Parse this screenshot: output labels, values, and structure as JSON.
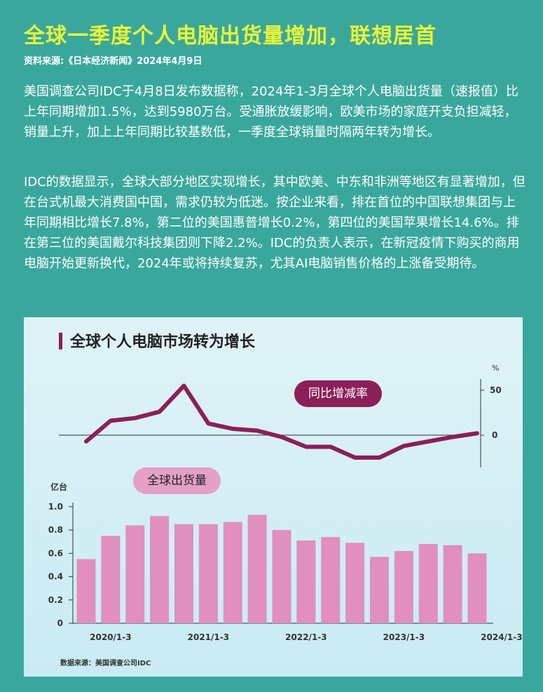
{
  "headline": "全球一季度个人电脑出货量增加，联想居首",
  "source": "资料来源:《日本经济新闻》2024年4月9日",
  "paragraphs": [
    "美国调查公司IDC于4月8日发布数据称，2024年1-3月全球个人电脑出货量（速报值）比上年同期增加1.5%，达到5980万台。受通胀放缓影响，欧美市场的家庭开支负担减轻，销量上升，加上上年同期比较基数低，一季度全球销量时隔两年转为增长。",
    "IDC的数据显示，全球大部分地区实现增长，其中欧美、中东和非洲等地区有显著增加，但在台式机最大消费国中国，需求仍较为低迷。按企业来看，排在首位的中国联想集团与上年同期相比增长7.8%，第二位的美国惠普增长0.2%，第四位的美国苹果增长14.6%。排在第三位的美国戴尔科技集团则下降2.2%。IDC的负责人表示，在新冠疫情下购买的商用电脑开始更新换代，2024年或将持续复苏，尤其AI电脑销售价格的上涨备受期待。"
  ],
  "chart_title": "全球个人电脑市场转为增长",
  "chart_credit": "数据来源：美国调查公司IDC",
  "colors": {
    "growth": "#8b1f57",
    "bars": "#e08fbe",
    "accent": "#e8f53a"
  },
  "chart_data": [
    {
      "type": "line",
      "series_label": "同比增减率",
      "unit": "%",
      "yticks": [
        "50",
        "0"
      ],
      "ylim": [
        -35,
        55
      ],
      "values": [
        -7,
        16,
        19,
        26,
        55,
        13,
        7,
        5,
        -2,
        -13,
        -13,
        -25,
        -25,
        -12,
        -7,
        -2,
        2
      ]
    },
    {
      "type": "bar",
      "series_label": "全球出货量",
      "unit": "亿台",
      "yticks": [
        "1.0",
        "0.8",
        "0.6",
        "0.4",
        "0.2",
        "0"
      ],
      "ylim": [
        0,
        1.0
      ],
      "xticks": [
        "2020/1-3",
        "2021/1-3",
        "2022/1-3",
        "2023/1-3",
        "2024/1-3"
      ],
      "values": [
        0.55,
        0.75,
        0.84,
        0.92,
        0.85,
        0.85,
        0.87,
        0.93,
        0.8,
        0.71,
        0.74,
        0.69,
        0.57,
        0.62,
        0.68,
        0.67,
        0.6
      ]
    }
  ]
}
